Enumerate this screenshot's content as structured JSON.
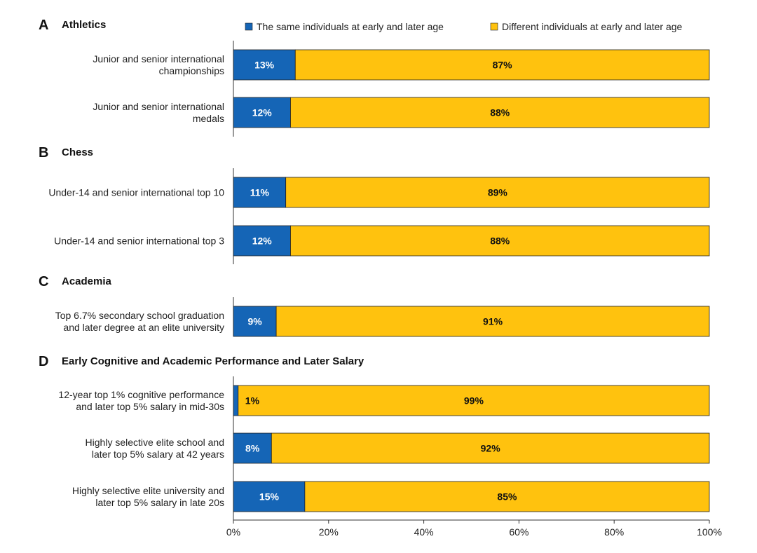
{
  "colors": {
    "same": "#1565b6",
    "different": "#ffc20e",
    "text_on_same": "#ffffff",
    "text_on_different": "#111111",
    "axis": "#333333"
  },
  "legend": [
    {
      "key": "same",
      "label": "The same individuals at early and later age"
    },
    {
      "key": "different",
      "label": "Different individuals at early and later age"
    }
  ],
  "chart_data": {
    "type": "bar",
    "orientation": "horizontal",
    "stacked": true,
    "xlim": [
      0,
      100
    ],
    "xticks": [
      "0%",
      "20%",
      "40%",
      "60%",
      "80%",
      "100%"
    ],
    "xtick_values": [
      0,
      20,
      40,
      60,
      80,
      100
    ],
    "legend_position": "top",
    "grid": false,
    "series": [
      {
        "name": "The same individuals at early and later age",
        "color": "#1565b6"
      },
      {
        "name": "Different individuals at early and later age",
        "color": "#ffc20e"
      }
    ],
    "panels": [
      {
        "letter": "A",
        "title": "Athletics",
        "rows": [
          {
            "label": [
              "Junior and senior international",
              "championships"
            ],
            "same": 13,
            "different": 87,
            "same_label": "13%",
            "different_label": "87%"
          },
          {
            "label": [
              "Junior and senior international",
              "medals"
            ],
            "same": 12,
            "different": 88,
            "same_label": "12%",
            "different_label": "88%"
          }
        ]
      },
      {
        "letter": "B",
        "title": "Chess",
        "rows": [
          {
            "label": [
              "Under-14 and senior international top 10"
            ],
            "same": 11,
            "different": 89,
            "same_label": "11%",
            "different_label": "89%"
          },
          {
            "label": [
              "Under-14 and senior international top 3"
            ],
            "same": 12,
            "different": 88,
            "same_label": "12%",
            "different_label": "88%"
          }
        ]
      },
      {
        "letter": "C",
        "title": "Academia",
        "rows": [
          {
            "label": [
              "Top 6.7% secondary school graduation",
              "and later degree at an elite university"
            ],
            "same": 9,
            "different": 91,
            "same_label": "9%",
            "different_label": "91%"
          }
        ]
      },
      {
        "letter": "D",
        "title": "Early Cognitive and Academic Performance and Later Salary",
        "rows": [
          {
            "label": [
              "12-year top 1% cognitive performance",
              "and later top 5% salary in mid-30s"
            ],
            "same": 1,
            "different": 99,
            "same_label": "1%",
            "different_label": "99%"
          },
          {
            "label": [
              "Highly selective elite school and",
              "later top 5% salary at 42 years"
            ],
            "same": 8,
            "different": 92,
            "same_label": "8%",
            "different_label": "92%"
          },
          {
            "label": [
              "Highly selective elite university and",
              "later top 5% salary in late 20s"
            ],
            "same": 15,
            "different": 85,
            "same_label": "15%",
            "different_label": "85%"
          }
        ]
      }
    ]
  }
}
